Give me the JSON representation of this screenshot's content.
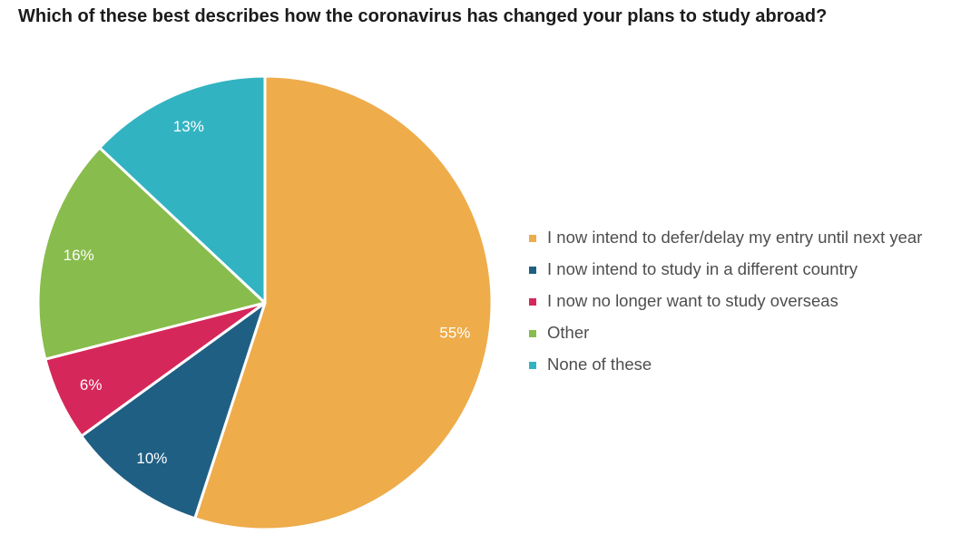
{
  "chart_data": {
    "type": "pie",
    "title": "Which of these best describes how the coronavirus has changed your plans to study abroad?",
    "slices": [
      {
        "label": "I now intend to defer/delay my entry until next year",
        "value": 55,
        "value_label": "55%",
        "color": "#EEAC4B"
      },
      {
        "label": "I now intend to study in a different country",
        "value": 10,
        "value_label": "10%",
        "color": "#1F5F84"
      },
      {
        "label": "I now no longer want to study overseas",
        "value": 6,
        "value_label": "6%",
        "color": "#D6275A"
      },
      {
        "label": "Other",
        "value": 16,
        "value_label": "16%",
        "color": "#88BC4C"
      },
      {
        "label": "None of these",
        "value": 13,
        "value_label": "13%",
        "color": "#32B3C2"
      }
    ],
    "legend_position": "right"
  }
}
